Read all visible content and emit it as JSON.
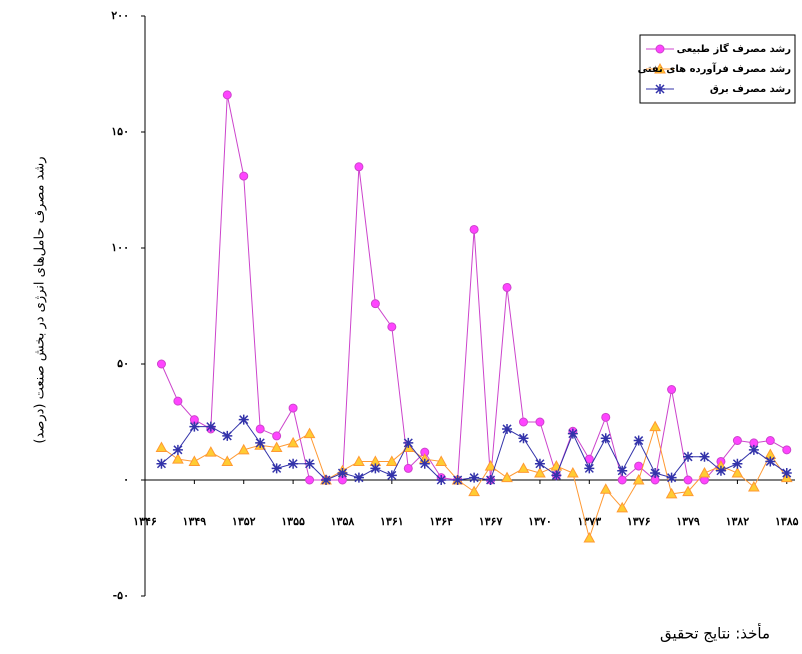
{
  "chart_data": {
    "type": "line",
    "y_label": "رشد مصرف حامل‌های انرژی در بخش صنعت (درصد)",
    "source": "مأخذ: نتایج تحقیق",
    "legend": "upper right",
    "x": [
      1347,
      1348,
      1349,
      1350,
      1351,
      1352,
      1353,
      1354,
      1355,
      1356,
      1357,
      1358,
      1359,
      1360,
      1361,
      1362,
      1363,
      1364,
      1365,
      1366,
      1367,
      1368,
      1369,
      1370,
      1371,
      1372,
      1373,
      1374,
      1375,
      1376,
      1377,
      1378,
      1379,
      1380,
      1381,
      1382,
      1383,
      1384,
      1385
    ],
    "xlim": [
      1346,
      1385.5
    ],
    "xticks": [
      {
        "value": 1346,
        "label": "۱۳۴۶"
      },
      {
        "value": 1349,
        "label": "۱۳۴۹"
      },
      {
        "value": 1352,
        "label": "۱۳۵۲"
      },
      {
        "value": 1355,
        "label": "۱۳۵۵"
      },
      {
        "value": 1358,
        "label": "۱۳۵۸"
      },
      {
        "value": 1361,
        "label": "۱۳۶۱"
      },
      {
        "value": 1364,
        "label": "۱۳۶۴"
      },
      {
        "value": 1367,
        "label": "۱۳۶۷"
      },
      {
        "value": 1370,
        "label": "۱۳۷۰"
      },
      {
        "value": 1373,
        "label": "۱۳۷۳"
      },
      {
        "value": 1376,
        "label": "۱۳۷۶"
      },
      {
        "value": 1379,
        "label": "۱۳۷۹"
      },
      {
        "value": 1382,
        "label": "۱۳۸۲"
      },
      {
        "value": 1385,
        "label": "۱۳۸۵"
      }
    ],
    "ylim": [
      -50,
      200
    ],
    "yticks": [
      {
        "value": -50,
        "label": "-۵۰"
      },
      {
        "value": 0,
        "label": "۰"
      },
      {
        "value": 50,
        "label": "۵۰"
      },
      {
        "value": 100,
        "label": "۱۰۰"
      },
      {
        "value": 150,
        "label": "۱۵۰"
      },
      {
        "value": 200,
        "label": "۲۰۰"
      }
    ],
    "series": [
      {
        "name": "رشد مصرف گاز طبیعی",
        "color": "#cc44cc",
        "marker": "circle",
        "values": [
          50,
          34,
          26,
          22,
          166,
          131,
          22,
          19,
          31,
          0,
          0,
          0,
          135,
          76,
          66,
          5,
          12,
          1,
          0,
          108,
          0,
          83,
          25,
          25,
          2,
          21,
          9,
          27,
          0,
          6,
          0,
          39,
          0,
          0,
          8,
          17,
          16,
          17,
          13
        ]
      },
      {
        "name": "رشد مصرف فرآورده های نفتی",
        "color": "#ff9933",
        "marker": "triangle",
        "values": [
          14,
          9,
          8,
          12,
          8,
          13,
          15,
          14,
          16,
          20,
          0,
          4,
          8,
          8,
          8,
          14,
          9,
          8,
          0,
          -5,
          6,
          1,
          5,
          3,
          6,
          3,
          -25,
          -4,
          -12,
          0,
          23,
          -6,
          -5,
          3,
          6,
          3,
          -3,
          11,
          1
        ]
      },
      {
        "name": "رشد مصرف برق",
        "color": "#3333aa",
        "marker": "star",
        "values": [
          7,
          13,
          23,
          23,
          19,
          26,
          16,
          5,
          7,
          7,
          0,
          3,
          1,
          5,
          2,
          16,
          7,
          0,
          0,
          1,
          0,
          22,
          18,
          7,
          2,
          20,
          5,
          18,
          4,
          17,
          3,
          1,
          10,
          10,
          4,
          7,
          13,
          8,
          3
        ]
      }
    ]
  }
}
